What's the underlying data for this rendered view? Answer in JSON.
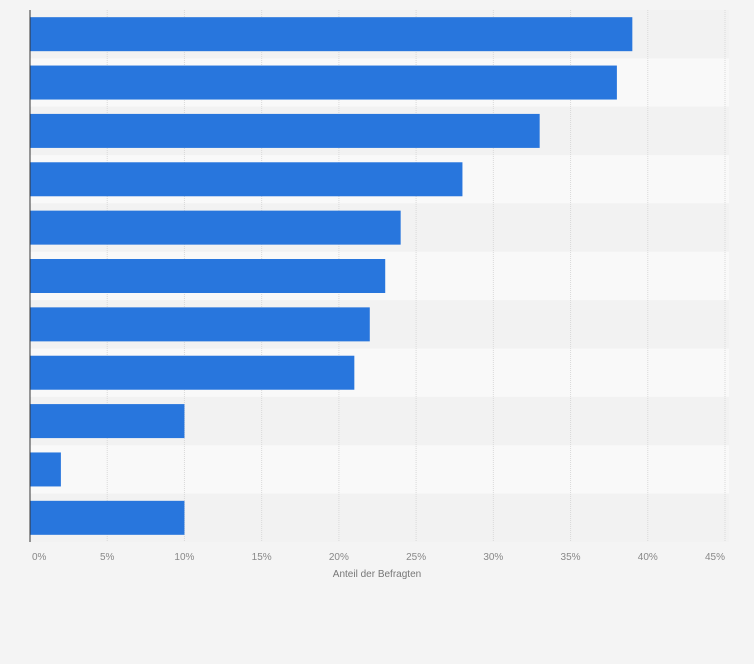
{
  "chart_data": {
    "type": "bar",
    "orientation": "horizontal",
    "categories": [
      "",
      "",
      "",
      "",
      "",
      "",
      "",
      "",
      "",
      "",
      ""
    ],
    "values": [
      39,
      38,
      33,
      28,
      24,
      23,
      22,
      21,
      10,
      2,
      10
    ],
    "title": "",
    "xlabel": "Anteil der Befragten",
    "ylabel": "",
    "xlim": [
      0,
      45
    ],
    "xticks": [
      0,
      5,
      10,
      15,
      20,
      25,
      30,
      35,
      40,
      45
    ],
    "xtick_labels": [
      "0%",
      "5%",
      "10%",
      "15%",
      "20%",
      "25%",
      "30%",
      "35%",
      "40%",
      "45%"
    ],
    "grid": true,
    "legend": "none",
    "bar_color": "#2876dd",
    "band_color_a": "#f2f2f2",
    "band_color_b": "#f9f9f9",
    "grid_color": "#d9d9d9",
    "tick_color": "#888888",
    "axis_label_color": "#777777"
  }
}
